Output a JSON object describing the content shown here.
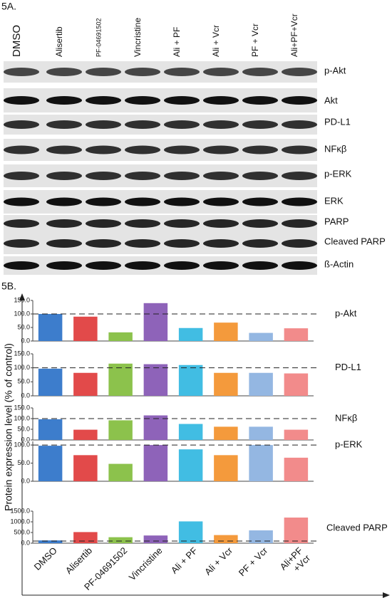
{
  "panel_a": {
    "label": "5A.",
    "lanes": [
      "DMSO",
      "Alisertib",
      "PF-04691502",
      "Vincristine",
      "Ali + PF",
      "Ali + Vcr",
      "PF + Vcr",
      "Ali+PF+Vcr"
    ],
    "proteins": [
      "p-Akt",
      "Akt",
      "PD-L1",
      "NFκβ",
      "p-ERK",
      "ERK",
      "PARP",
      "Cleaved PARP",
      "ß-Actin"
    ]
  },
  "panel_b": {
    "label": "5B.",
    "ylabel": "Protein expression level (% of control)",
    "categories": [
      "DMSO",
      "Alisertib",
      "PF-04691502",
      "Vincristine",
      "Ali + PF",
      "Ali + Vcr",
      "PF + Vcr",
      "Ali+PF\n+Vcr"
    ],
    "colors": [
      "#3d7dcc",
      "#e24a4a",
      "#8cc24c",
      "#8e63b9",
      "#41bde3",
      "#f49a3c",
      "#94b7e2",
      "#f28b8b"
    ]
  },
  "chart_data": [
    {
      "type": "bar",
      "title": "p-Akt",
      "values": [
        100,
        90,
        32,
        140,
        48,
        68,
        30,
        47
      ],
      "reference": 100,
      "ylim": [
        0,
        150
      ],
      "yticks": [
        {
          "value": 0,
          "label": "0.0"
        },
        {
          "value": 50,
          "label": "50.0"
        },
        {
          "value": 100,
          "label": "100.0"
        },
        {
          "value": 150,
          "label": "150.0"
        }
      ]
    },
    {
      "type": "bar",
      "title": "PD-L1",
      "values": [
        97,
        82,
        115,
        113,
        110,
        82,
        82,
        80
      ],
      "reference": 100,
      "ylim": [
        0,
        150
      ],
      "yticks": [
        {
          "value": 0,
          "label": "0.0"
        },
        {
          "value": 50,
          "label": "50.0"
        },
        {
          "value": 100,
          "label": "100.0"
        },
        {
          "value": 150,
          "label": "150.0"
        }
      ]
    },
    {
      "type": "bar",
      "title": "NFκβ",
      "values": [
        97,
        48,
        92,
        115,
        75,
        62,
        62,
        48
      ],
      "reference": 100,
      "ylim": [
        0,
        150
      ],
      "yticks": [
        {
          "value": 0,
          "label": "0.0"
        },
        {
          "value": 50,
          "label": "50.0"
        },
        {
          "value": 100,
          "label": "100.0"
        },
        {
          "value": 150,
          "label": "150.0"
        }
      ]
    },
    {
      "type": "bar",
      "title": "p-ERK",
      "values": [
        98,
        72,
        48,
        100,
        88,
        72,
        100,
        65
      ],
      "reference": 100,
      "ylim": [
        0,
        110
      ],
      "yticks": [
        {
          "value": 0,
          "label": "0.0"
        },
        {
          "value": 50,
          "label": "50.0"
        },
        {
          "value": 100,
          "label": "100.0"
        }
      ]
    },
    {
      "type": "bar",
      "title": "Cleaved PARP",
      "values": [
        130,
        520,
        280,
        360,
        1020,
        380,
        600,
        1200
      ],
      "reference": 100,
      "ylim": [
        0,
        1500
      ],
      "yticks": [
        {
          "value": 0,
          "label": "0.0"
        },
        {
          "value": 500,
          "label": "500.0"
        },
        {
          "value": 1000,
          "label": "1000.0"
        },
        {
          "value": 1500,
          "label": "1500.0"
        }
      ]
    }
  ]
}
